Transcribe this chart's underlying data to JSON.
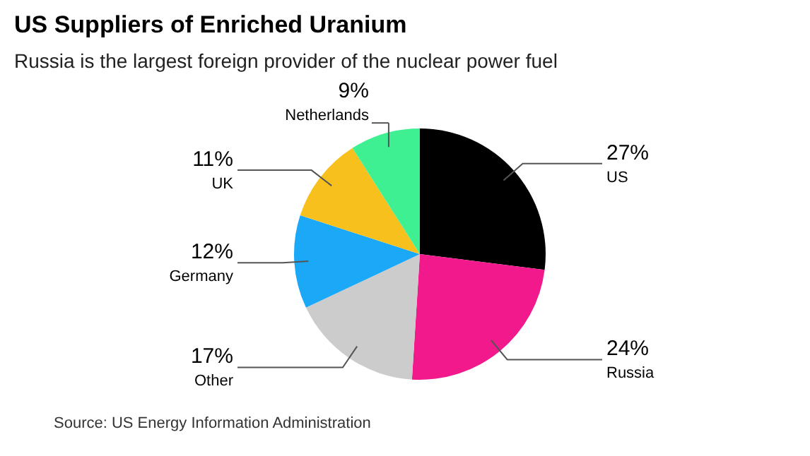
{
  "chart_data": {
    "type": "pie",
    "title": "US Suppliers of Enriched Uranium",
    "subtitle": "Russia is the largest foreign provider of the nuclear power fuel",
    "categories": [
      "US",
      "Russia",
      "Other",
      "Germany",
      "UK",
      "Netherlands"
    ],
    "values": [
      27,
      24,
      17,
      12,
      11,
      9
    ],
    "colors": [
      "#000000",
      "#f2198c",
      "#cccccc",
      "#1aa8f7",
      "#f7c01c",
      "#3ff093"
    ],
    "value_labels": [
      "27%",
      "24%",
      "17%",
      "12%",
      "11%",
      "9%"
    ],
    "annotations": [
      "Source: US Energy Information Administration"
    ]
  }
}
